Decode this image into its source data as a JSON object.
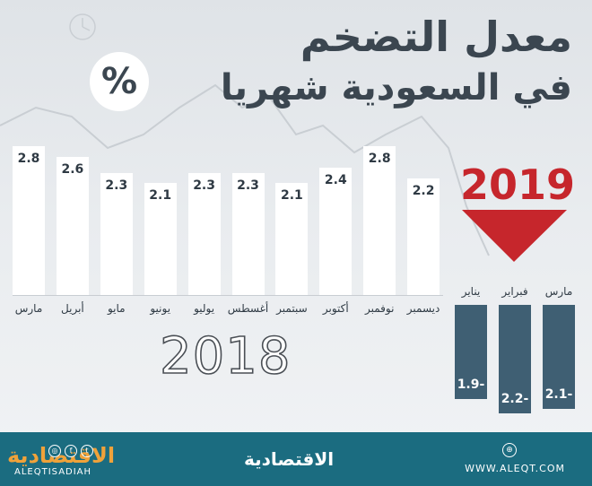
{
  "title": {
    "line1": "معدل التضخم",
    "line2": "في السعودية شهريا"
  },
  "unit_symbol": "%",
  "chart_data": [
    {
      "type": "bar",
      "year": "2018",
      "categories": [
        "مارس",
        "أبريل",
        "مايو",
        "يونيو",
        "يوليو",
        "أغسطس",
        "سبتمبر",
        "أكتوبر",
        "نوفمبر",
        "ديسمبر"
      ],
      "values": [
        2.8,
        2.6,
        2.3,
        2.1,
        2.3,
        2.3,
        2.1,
        2.4,
        2.8,
        2.2
      ],
      "value_labels": [
        "2.8",
        "2.6",
        "2.3",
        "2.1",
        "2.3",
        "2.3",
        "2.1",
        "2.4",
        "2.8",
        "2.2"
      ]
    },
    {
      "type": "bar",
      "year": "2019",
      "categories": [
        "يناير",
        "فبراير",
        "مارس"
      ],
      "values": [
        -1.9,
        -2.2,
        -2.1
      ],
      "value_labels": [
        "1.9-",
        "2.2-",
        "2.1-"
      ]
    }
  ],
  "footer": {
    "brand_left": "الاقتصادية",
    "brand_left_latin": "ALEQTISADIAH",
    "brand_center": "الاقتصادية",
    "website": "WWW.ALEQT.COM",
    "social_icons": [
      "instagram-icon",
      "facebook-icon",
      "twitter-icon"
    ],
    "web_icon": "globe-icon",
    "colors": {
      "footer_bg": "#1b6c80",
      "accent_red": "#c6262c",
      "negative_bar": "#3f5f73"
    }
  }
}
